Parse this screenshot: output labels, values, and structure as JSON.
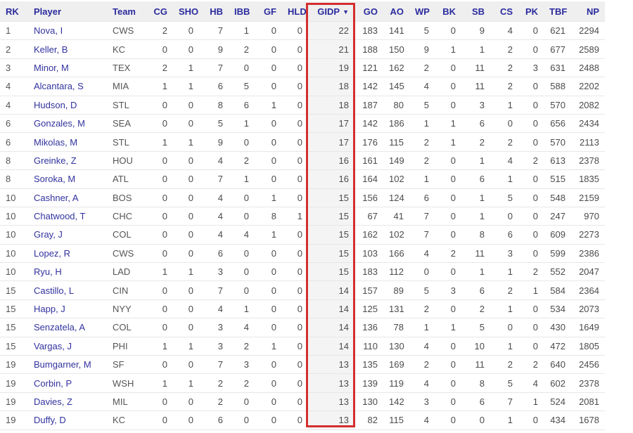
{
  "colors": {
    "header_bg": "#efefef",
    "header_text": "#2b2b9e",
    "link_text": "#32329f",
    "cell_text": "#4b4b4b",
    "row_border": "#e7e7e7",
    "sorted_col_bg": "#f4f4f4",
    "highlight_border": "#d32f2f"
  },
  "table": {
    "sort_indicator": "▼",
    "sorted_column": "gidp",
    "columns": [
      {
        "key": "rk",
        "label": "RK",
        "align": "left"
      },
      {
        "key": "player",
        "label": "Player",
        "align": "left"
      },
      {
        "key": "team",
        "label": "Team",
        "align": "left"
      },
      {
        "key": "cg",
        "label": "CG",
        "align": "right"
      },
      {
        "key": "sho",
        "label": "SHO",
        "align": "right"
      },
      {
        "key": "hb",
        "label": "HB",
        "align": "right"
      },
      {
        "key": "ibb",
        "label": "IBB",
        "align": "right"
      },
      {
        "key": "gf",
        "label": "GF",
        "align": "right"
      },
      {
        "key": "hld",
        "label": "HLD",
        "align": "right"
      },
      {
        "key": "gidp",
        "label": "GIDP",
        "align": "right",
        "sorted": true
      },
      {
        "key": "go",
        "label": "GO",
        "align": "right"
      },
      {
        "key": "ao",
        "label": "AO",
        "align": "right"
      },
      {
        "key": "wp",
        "label": "WP",
        "align": "right"
      },
      {
        "key": "bk",
        "label": "BK",
        "align": "right"
      },
      {
        "key": "sb",
        "label": "SB",
        "align": "right"
      },
      {
        "key": "cs",
        "label": "CS",
        "align": "right"
      },
      {
        "key": "pk",
        "label": "PK",
        "align": "right"
      },
      {
        "key": "tbf",
        "label": "TBF",
        "align": "right"
      },
      {
        "key": "np",
        "label": "NP",
        "align": "right"
      }
    ],
    "rows": [
      {
        "rk": "1",
        "player": "Nova, I",
        "team": "CWS",
        "cg": "2",
        "sho": "0",
        "hb": "7",
        "ibb": "1",
        "gf": "0",
        "hld": "0",
        "gidp": "22",
        "go": "183",
        "ao": "141",
        "wp": "5",
        "bk": "0",
        "sb": "9",
        "cs": "4",
        "pk": "0",
        "tbf": "621",
        "np": "2294"
      },
      {
        "rk": "2",
        "player": "Keller, B",
        "team": "KC",
        "cg": "0",
        "sho": "0",
        "hb": "9",
        "ibb": "2",
        "gf": "0",
        "hld": "0",
        "gidp": "21",
        "go": "188",
        "ao": "150",
        "wp": "9",
        "bk": "1",
        "sb": "1",
        "cs": "2",
        "pk": "0",
        "tbf": "677",
        "np": "2589"
      },
      {
        "rk": "3",
        "player": "Minor, M",
        "team": "TEX",
        "cg": "2",
        "sho": "1",
        "hb": "7",
        "ibb": "0",
        "gf": "0",
        "hld": "0",
        "gidp": "19",
        "go": "121",
        "ao": "162",
        "wp": "2",
        "bk": "0",
        "sb": "11",
        "cs": "2",
        "pk": "3",
        "tbf": "631",
        "np": "2488"
      },
      {
        "rk": "4",
        "player": "Alcantara, S",
        "team": "MIA",
        "cg": "1",
        "sho": "1",
        "hb": "6",
        "ibb": "5",
        "gf": "0",
        "hld": "0",
        "gidp": "18",
        "go": "142",
        "ao": "145",
        "wp": "4",
        "bk": "0",
        "sb": "11",
        "cs": "2",
        "pk": "0",
        "tbf": "588",
        "np": "2202"
      },
      {
        "rk": "4",
        "player": "Hudson, D",
        "team": "STL",
        "cg": "0",
        "sho": "0",
        "hb": "8",
        "ibb": "6",
        "gf": "1",
        "hld": "0",
        "gidp": "18",
        "go": "187",
        "ao": "80",
        "wp": "5",
        "bk": "0",
        "sb": "3",
        "cs": "1",
        "pk": "0",
        "tbf": "570",
        "np": "2082"
      },
      {
        "rk": "6",
        "player": "Gonzales, M",
        "team": "SEA",
        "cg": "0",
        "sho": "0",
        "hb": "5",
        "ibb": "1",
        "gf": "0",
        "hld": "0",
        "gidp": "17",
        "go": "142",
        "ao": "186",
        "wp": "1",
        "bk": "1",
        "sb": "6",
        "cs": "0",
        "pk": "0",
        "tbf": "656",
        "np": "2434"
      },
      {
        "rk": "6",
        "player": "Mikolas, M",
        "team": "STL",
        "cg": "1",
        "sho": "1",
        "hb": "9",
        "ibb": "0",
        "gf": "0",
        "hld": "0",
        "gidp": "17",
        "go": "176",
        "ao": "115",
        "wp": "2",
        "bk": "1",
        "sb": "2",
        "cs": "2",
        "pk": "0",
        "tbf": "570",
        "np": "2113"
      },
      {
        "rk": "8",
        "player": "Greinke, Z",
        "team": "HOU",
        "cg": "0",
        "sho": "0",
        "hb": "4",
        "ibb": "2",
        "gf": "0",
        "hld": "0",
        "gidp": "16",
        "go": "161",
        "ao": "149",
        "wp": "2",
        "bk": "0",
        "sb": "1",
        "cs": "4",
        "pk": "2",
        "tbf": "613",
        "np": "2378"
      },
      {
        "rk": "8",
        "player": "Soroka, M",
        "team": "ATL",
        "cg": "0",
        "sho": "0",
        "hb": "7",
        "ibb": "1",
        "gf": "0",
        "hld": "0",
        "gidp": "16",
        "go": "164",
        "ao": "102",
        "wp": "1",
        "bk": "0",
        "sb": "6",
        "cs": "1",
        "pk": "0",
        "tbf": "515",
        "np": "1835"
      },
      {
        "rk": "10",
        "player": "Cashner, A",
        "team": "BOS",
        "cg": "0",
        "sho": "0",
        "hb": "4",
        "ibb": "0",
        "gf": "1",
        "hld": "0",
        "gidp": "15",
        "go": "156",
        "ao": "124",
        "wp": "6",
        "bk": "0",
        "sb": "1",
        "cs": "5",
        "pk": "0",
        "tbf": "548",
        "np": "2159"
      },
      {
        "rk": "10",
        "player": "Chatwood, T",
        "team": "CHC",
        "cg": "0",
        "sho": "0",
        "hb": "4",
        "ibb": "0",
        "gf": "8",
        "hld": "1",
        "gidp": "15",
        "go": "67",
        "ao": "41",
        "wp": "7",
        "bk": "0",
        "sb": "1",
        "cs": "0",
        "pk": "0",
        "tbf": "247",
        "np": "970"
      },
      {
        "rk": "10",
        "player": "Gray, J",
        "team": "COL",
        "cg": "0",
        "sho": "0",
        "hb": "4",
        "ibb": "4",
        "gf": "1",
        "hld": "0",
        "gidp": "15",
        "go": "162",
        "ao": "102",
        "wp": "7",
        "bk": "0",
        "sb": "8",
        "cs": "6",
        "pk": "0",
        "tbf": "609",
        "np": "2273"
      },
      {
        "rk": "10",
        "player": "Lopez, R",
        "team": "CWS",
        "cg": "0",
        "sho": "0",
        "hb": "6",
        "ibb": "0",
        "gf": "0",
        "hld": "0",
        "gidp": "15",
        "go": "103",
        "ao": "166",
        "wp": "4",
        "bk": "2",
        "sb": "11",
        "cs": "3",
        "pk": "0",
        "tbf": "599",
        "np": "2386"
      },
      {
        "rk": "10",
        "player": "Ryu, H",
        "team": "LAD",
        "cg": "1",
        "sho": "1",
        "hb": "3",
        "ibb": "0",
        "gf": "0",
        "hld": "0",
        "gidp": "15",
        "go": "183",
        "ao": "112",
        "wp": "0",
        "bk": "0",
        "sb": "1",
        "cs": "1",
        "pk": "2",
        "tbf": "552",
        "np": "2047"
      },
      {
        "rk": "15",
        "player": "Castillo, L",
        "team": "CIN",
        "cg": "0",
        "sho": "0",
        "hb": "7",
        "ibb": "0",
        "gf": "0",
        "hld": "0",
        "gidp": "14",
        "go": "157",
        "ao": "89",
        "wp": "5",
        "bk": "3",
        "sb": "6",
        "cs": "2",
        "pk": "1",
        "tbf": "584",
        "np": "2364"
      },
      {
        "rk": "15",
        "player": "Happ, J",
        "team": "NYY",
        "cg": "0",
        "sho": "0",
        "hb": "4",
        "ibb": "1",
        "gf": "0",
        "hld": "0",
        "gidp": "14",
        "go": "125",
        "ao": "131",
        "wp": "2",
        "bk": "0",
        "sb": "2",
        "cs": "1",
        "pk": "0",
        "tbf": "534",
        "np": "2073"
      },
      {
        "rk": "15",
        "player": "Senzatela, A",
        "team": "COL",
        "cg": "0",
        "sho": "0",
        "hb": "3",
        "ibb": "4",
        "gf": "0",
        "hld": "0",
        "gidp": "14",
        "go": "136",
        "ao": "78",
        "wp": "1",
        "bk": "1",
        "sb": "5",
        "cs": "0",
        "pk": "0",
        "tbf": "430",
        "np": "1649"
      },
      {
        "rk": "15",
        "player": "Vargas, J",
        "team": "PHI",
        "cg": "1",
        "sho": "1",
        "hb": "3",
        "ibb": "2",
        "gf": "1",
        "hld": "0",
        "gidp": "14",
        "go": "110",
        "ao": "130",
        "wp": "4",
        "bk": "0",
        "sb": "10",
        "cs": "1",
        "pk": "0",
        "tbf": "472",
        "np": "1805"
      },
      {
        "rk": "19",
        "player": "Bumgarner, M",
        "team": "SF",
        "cg": "0",
        "sho": "0",
        "hb": "7",
        "ibb": "3",
        "gf": "0",
        "hld": "0",
        "gidp": "13",
        "go": "135",
        "ao": "169",
        "wp": "2",
        "bk": "0",
        "sb": "11",
        "cs": "2",
        "pk": "2",
        "tbf": "640",
        "np": "2456"
      },
      {
        "rk": "19",
        "player": "Corbin, P",
        "team": "WSH",
        "cg": "1",
        "sho": "1",
        "hb": "2",
        "ibb": "2",
        "gf": "0",
        "hld": "0",
        "gidp": "13",
        "go": "139",
        "ao": "119",
        "wp": "4",
        "bk": "0",
        "sb": "8",
        "cs": "5",
        "pk": "4",
        "tbf": "602",
        "np": "2378"
      },
      {
        "rk": "19",
        "player": "Davies, Z",
        "team": "MIL",
        "cg": "0",
        "sho": "0",
        "hb": "2",
        "ibb": "0",
        "gf": "0",
        "hld": "0",
        "gidp": "13",
        "go": "130",
        "ao": "142",
        "wp": "3",
        "bk": "0",
        "sb": "6",
        "cs": "7",
        "pk": "1",
        "tbf": "524",
        "np": "2081"
      },
      {
        "rk": "19",
        "player": "Duffy, D",
        "team": "KC",
        "cg": "0",
        "sho": "0",
        "hb": "6",
        "ibb": "0",
        "gf": "0",
        "hld": "0",
        "gidp": "13",
        "go": "82",
        "ao": "115",
        "wp": "4",
        "bk": "0",
        "sb": "0",
        "cs": "1",
        "pk": "0",
        "tbf": "434",
        "np": "1678"
      }
    ]
  }
}
